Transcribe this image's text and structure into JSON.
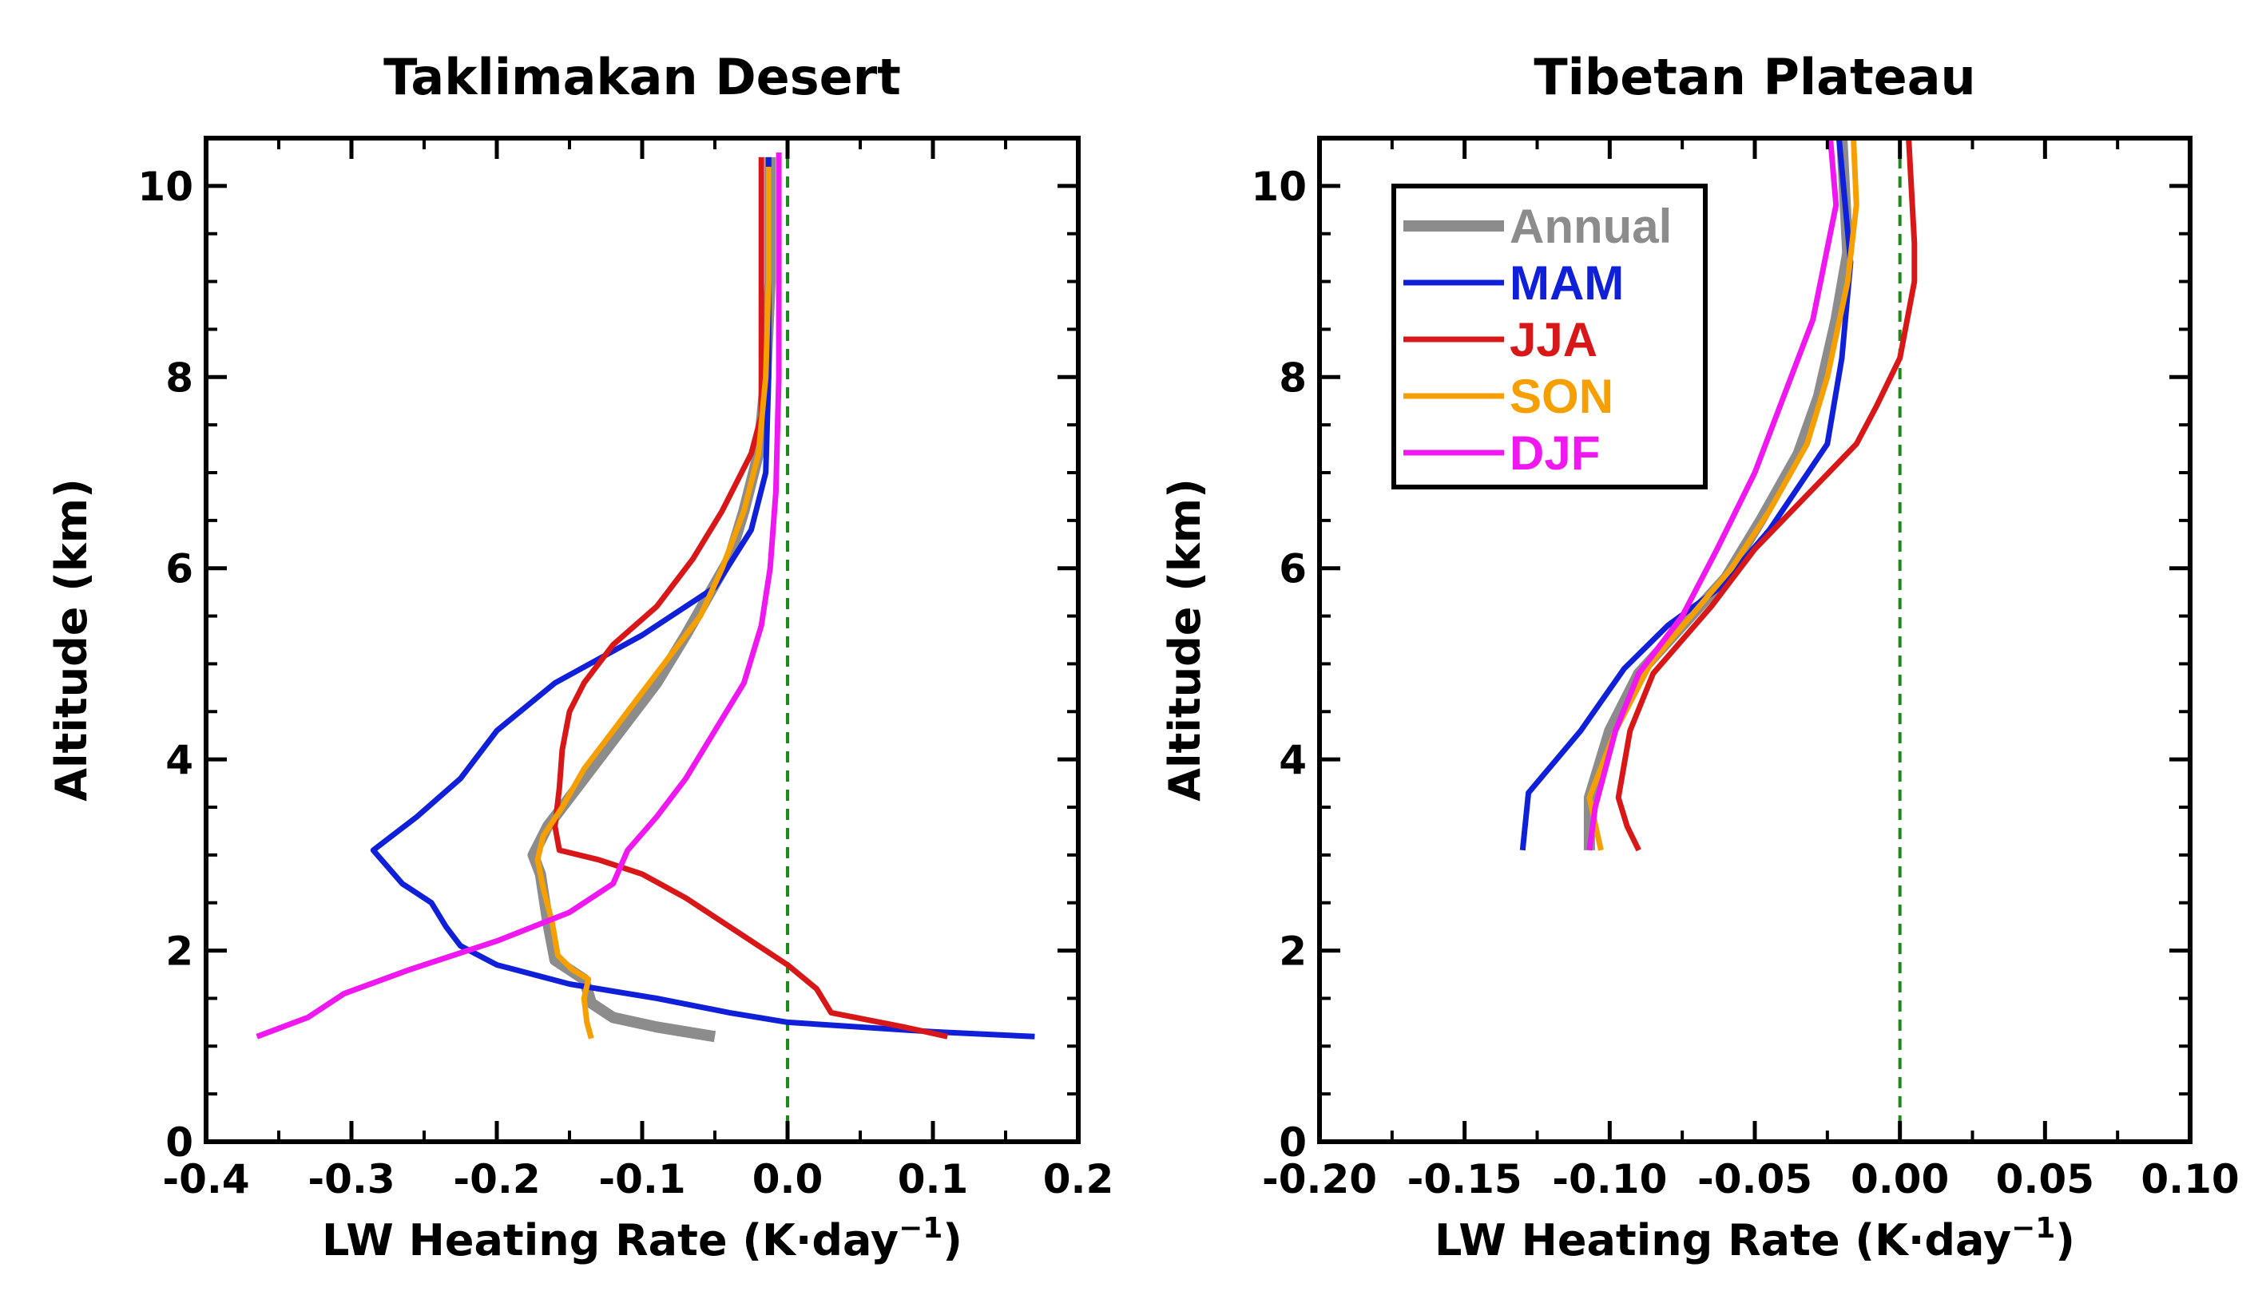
{
  "chart_data": [
    {
      "type": "line",
      "title": "Taklimakan Desert",
      "xlabel": "LW Heating Rate (K·day",
      "xlabel_sup": "−1",
      "xlabel_close": ")",
      "ylabel": "Altitude (km)",
      "xlim": [
        -0.4,
        0.2
      ],
      "ylim": [
        0,
        10.5
      ],
      "xticks": [
        -0.4,
        -0.3,
        -0.2,
        -0.1,
        0.0,
        0.1,
        0.2
      ],
      "xtick_labels": [
        "-0.4",
        "-0.3",
        "-0.2",
        "-0.1",
        "0.0",
        "0.1",
        "0.2"
      ],
      "yticks": [
        0,
        2,
        4,
        6,
        8,
        10
      ],
      "ytick_labels": [
        "0",
        "2",
        "4",
        "6",
        "8",
        "10"
      ],
      "reference_line": {
        "x": 0.0,
        "style": "dashed",
        "color": "#1a8a1a"
      },
      "series": [
        {
          "name": "Annual",
          "color": "#8c8c8c",
          "width": 14,
          "points": [
            [
              -0.05,
              1.1
            ],
            [
              -0.09,
              1.2
            ],
            [
              -0.12,
              1.3
            ],
            [
              -0.135,
              1.45
            ],
            [
              -0.14,
              1.7
            ],
            [
              -0.16,
              1.9
            ],
            [
              -0.165,
              2.3
            ],
            [
              -0.17,
              2.8
            ],
            [
              -0.175,
              3.0
            ],
            [
              -0.165,
              3.3
            ],
            [
              -0.15,
              3.6
            ],
            [
              -0.13,
              4.0
            ],
            [
              -0.11,
              4.4
            ],
            [
              -0.09,
              4.8
            ],
            [
              -0.07,
              5.3
            ],
            [
              -0.055,
              5.7
            ],
            [
              -0.04,
              6.1
            ],
            [
              -0.03,
              6.6
            ],
            [
              -0.02,
              7.2
            ],
            [
              -0.015,
              8.0
            ],
            [
              -0.012,
              9.0
            ],
            [
              -0.012,
              10.3
            ]
          ]
        },
        {
          "name": "MAM",
          "color": "#1020d8",
          "width": 7,
          "points": [
            [
              0.17,
              1.1
            ],
            [
              0.1,
              1.15
            ],
            [
              0.0,
              1.25
            ],
            [
              -0.04,
              1.35
            ],
            [
              -0.09,
              1.5
            ],
            [
              -0.15,
              1.65
            ],
            [
              -0.2,
              1.85
            ],
            [
              -0.225,
              2.05
            ],
            [
              -0.235,
              2.25
            ],
            [
              -0.245,
              2.5
            ],
            [
              -0.265,
              2.7
            ],
            [
              -0.285,
              3.05
            ],
            [
              -0.255,
              3.4
            ],
            [
              -0.225,
              3.8
            ],
            [
              -0.2,
              4.3
            ],
            [
              -0.16,
              4.8
            ],
            [
              -0.1,
              5.3
            ],
            [
              -0.05,
              5.8
            ],
            [
              -0.025,
              6.4
            ],
            [
              -0.015,
              7.0
            ],
            [
              -0.013,
              8.0
            ],
            [
              -0.013,
              9.0
            ],
            [
              -0.013,
              10.3
            ]
          ]
        },
        {
          "name": "JJA",
          "color": "#d81818",
          "width": 7,
          "points": [
            [
              0.11,
              1.1
            ],
            [
              0.08,
              1.2
            ],
            [
              0.03,
              1.35
            ],
            [
              0.02,
              1.6
            ],
            [
              0.0,
              1.85
            ],
            [
              -0.03,
              2.15
            ],
            [
              -0.07,
              2.55
            ],
            [
              -0.1,
              2.8
            ],
            [
              -0.13,
              2.95
            ],
            [
              -0.157,
              3.05
            ],
            [
              -0.16,
              3.3
            ],
            [
              -0.157,
              3.7
            ],
            [
              -0.155,
              4.1
            ],
            [
              -0.15,
              4.5
            ],
            [
              -0.14,
              4.8
            ],
            [
              -0.12,
              5.2
            ],
            [
              -0.09,
              5.6
            ],
            [
              -0.065,
              6.1
            ],
            [
              -0.045,
              6.6
            ],
            [
              -0.025,
              7.2
            ],
            [
              -0.018,
              7.6
            ],
            [
              -0.018,
              8.2
            ],
            [
              -0.018,
              9.0
            ],
            [
              -0.018,
              10.3
            ]
          ]
        },
        {
          "name": "SON",
          "color": "#f5a000",
          "width": 7,
          "points": [
            [
              -0.135,
              1.08
            ],
            [
              -0.138,
              1.25
            ],
            [
              -0.14,
              1.5
            ],
            [
              -0.137,
              1.7
            ],
            [
              -0.148,
              1.8
            ],
            [
              -0.158,
              1.95
            ],
            [
              -0.162,
              2.3
            ],
            [
              -0.168,
              2.65
            ],
            [
              -0.172,
              2.95
            ],
            [
              -0.168,
              3.2
            ],
            [
              -0.155,
              3.5
            ],
            [
              -0.14,
              3.9
            ],
            [
              -0.12,
              4.3
            ],
            [
              -0.1,
              4.7
            ],
            [
              -0.08,
              5.1
            ],
            [
              -0.06,
              5.5
            ],
            [
              -0.045,
              6.0
            ],
            [
              -0.03,
              6.6
            ],
            [
              -0.02,
              7.2
            ],
            [
              -0.015,
              8.0
            ],
            [
              -0.013,
              9.0
            ],
            [
              -0.013,
              10.2
            ]
          ]
        },
        {
          "name": "DJF",
          "color": "#f018f0",
          "width": 7,
          "points": [
            [
              -0.365,
              1.1
            ],
            [
              -0.33,
              1.3
            ],
            [
              -0.305,
              1.55
            ],
            [
              -0.26,
              1.8
            ],
            [
              -0.2,
              2.1
            ],
            [
              -0.15,
              2.4
            ],
            [
              -0.12,
              2.7
            ],
            [
              -0.11,
              3.05
            ],
            [
              -0.09,
              3.4
            ],
            [
              -0.07,
              3.8
            ],
            [
              -0.05,
              4.3
            ],
            [
              -0.03,
              4.8
            ],
            [
              -0.018,
              5.4
            ],
            [
              -0.012,
              6.0
            ],
            [
              -0.008,
              6.8
            ],
            [
              -0.006,
              8.0
            ],
            [
              -0.006,
              9.0
            ],
            [
              -0.006,
              10.35
            ]
          ]
        }
      ]
    },
    {
      "type": "line",
      "title": "Tibetan Plateau",
      "xlabel": "LW Heating Rate (K·day",
      "xlabel_sup": "−1",
      "xlabel_close": ")",
      "ylabel": "Altitude (km)",
      "xlim": [
        -0.2,
        0.1
      ],
      "ylim": [
        0,
        10.5
      ],
      "xticks": [
        -0.2,
        -0.15,
        -0.1,
        -0.05,
        0.0,
        0.05,
        0.1
      ],
      "xtick_labels": [
        "-0.20",
        "-0.15",
        "-0.10",
        "-0.05",
        "0.00",
        "0.05",
        "0.10"
      ],
      "yticks": [
        0,
        2,
        4,
        6,
        8,
        10
      ],
      "ytick_labels": [
        "0",
        "2",
        "4",
        "6",
        "8",
        "10"
      ],
      "reference_line": {
        "x": 0.0,
        "style": "dashed",
        "color": "#1a8a1a"
      },
      "legend": {
        "position": "top-left",
        "entries": [
          "Annual",
          "MAM",
          "JJA",
          "SON",
          "DJF"
        ]
      },
      "series": [
        {
          "name": "Annual",
          "color": "#8c8c8c",
          "width": 14,
          "points": [
            [
              -0.107,
              3.05
            ],
            [
              -0.107,
              3.6
            ],
            [
              -0.1,
              4.3
            ],
            [
              -0.09,
              4.9
            ],
            [
              -0.075,
              5.4
            ],
            [
              -0.06,
              5.9
            ],
            [
              -0.048,
              6.5
            ],
            [
              -0.035,
              7.2
            ],
            [
              -0.028,
              7.8
            ],
            [
              -0.022,
              8.6
            ],
            [
              -0.018,
              9.3
            ],
            [
              -0.02,
              10.5
            ]
          ]
        },
        {
          "name": "MAM",
          "color": "#1020d8",
          "width": 7,
          "points": [
            [
              -0.13,
              3.05
            ],
            [
              -0.128,
              3.65
            ],
            [
              -0.11,
              4.3
            ],
            [
              -0.095,
              4.95
            ],
            [
              -0.08,
              5.4
            ],
            [
              -0.062,
              5.8
            ],
            [
              -0.045,
              6.4
            ],
            [
              -0.025,
              7.3
            ],
            [
              -0.02,
              8.2
            ],
            [
              -0.017,
              9.2
            ],
            [
              -0.021,
              10.5
            ]
          ]
        },
        {
          "name": "JJA",
          "color": "#d81818",
          "width": 7,
          "points": [
            [
              -0.09,
              3.05
            ],
            [
              -0.094,
              3.3
            ],
            [
              -0.097,
              3.6
            ],
            [
              -0.093,
              4.3
            ],
            [
              -0.085,
              4.9
            ],
            [
              -0.065,
              5.6
            ],
            [
              -0.05,
              6.2
            ],
            [
              -0.015,
              7.3
            ],
            [
              -0.008,
              7.7
            ],
            [
              0.0,
              8.2
            ],
            [
              0.005,
              9.0
            ],
            [
              0.005,
              9.4
            ],
            [
              0.003,
              10.5
            ]
          ]
        },
        {
          "name": "SON",
          "color": "#f5a000",
          "width": 7,
          "points": [
            [
              -0.103,
              3.05
            ],
            [
              -0.107,
              3.6
            ],
            [
              -0.098,
              4.3
            ],
            [
              -0.086,
              5.0
            ],
            [
              -0.072,
              5.5
            ],
            [
              -0.058,
              6.0
            ],
            [
              -0.045,
              6.6
            ],
            [
              -0.032,
              7.3
            ],
            [
              -0.025,
              8.0
            ],
            [
              -0.018,
              9.0
            ],
            [
              -0.015,
              9.8
            ],
            [
              -0.016,
              10.5
            ]
          ]
        },
        {
          "name": "DJF",
          "color": "#f018f0",
          "width": 7,
          "points": [
            [
              -0.107,
              3.05
            ],
            [
              -0.105,
              3.5
            ],
            [
              -0.098,
              4.3
            ],
            [
              -0.09,
              4.9
            ],
            [
              -0.075,
              5.5
            ],
            [
              -0.063,
              6.2
            ],
            [
              -0.05,
              7.0
            ],
            [
              -0.04,
              7.8
            ],
            [
              -0.03,
              8.6
            ],
            [
              -0.022,
              9.8
            ],
            [
              -0.024,
              10.5
            ]
          ]
        }
      ]
    }
  ]
}
